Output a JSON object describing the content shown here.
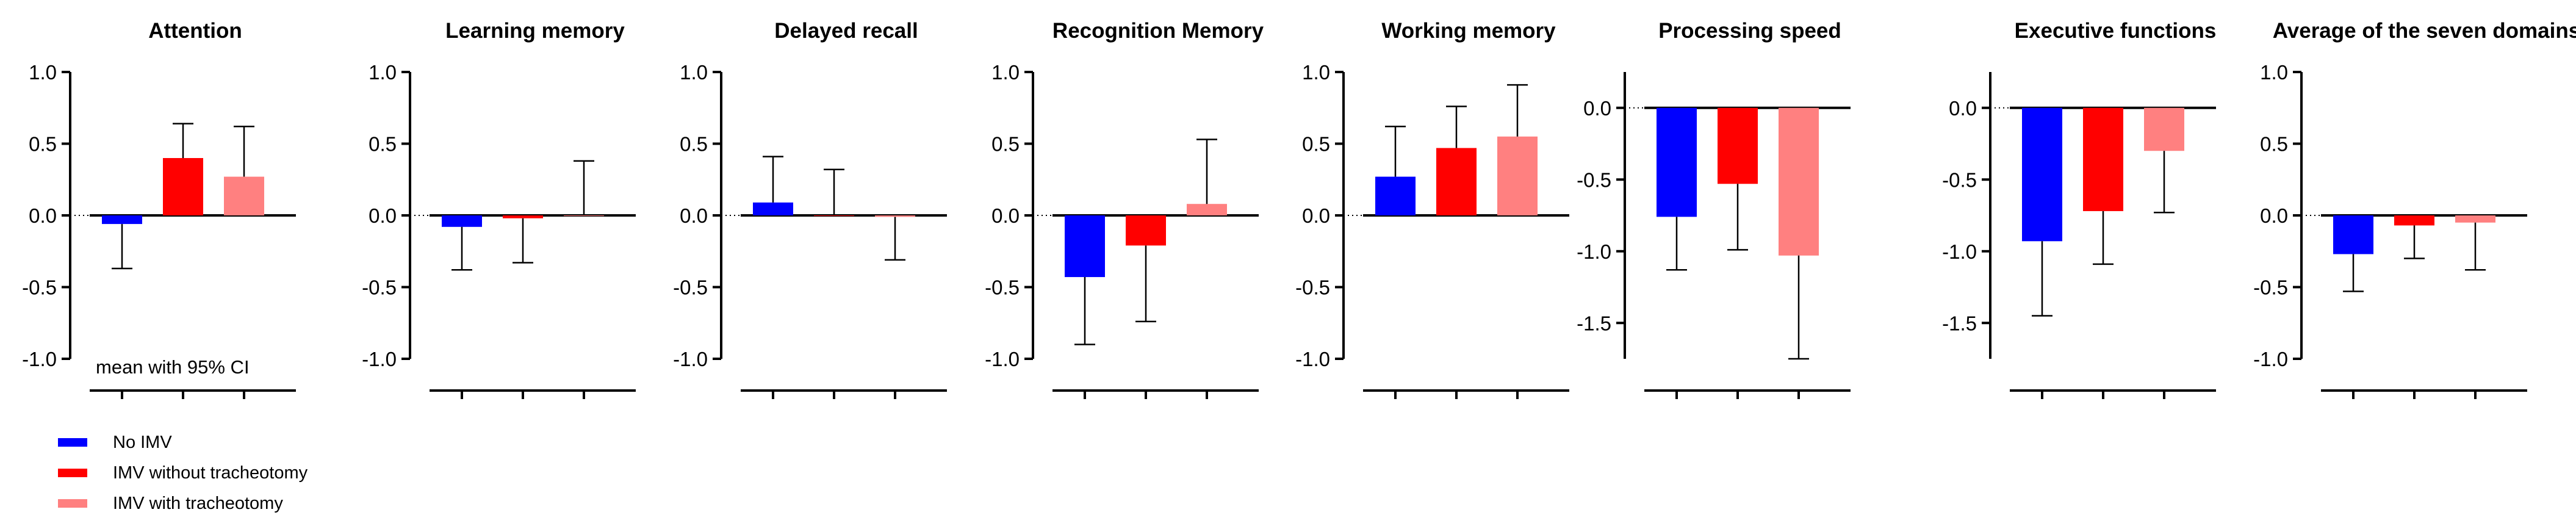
{
  "chart_data": [
    {
      "type": "bar",
      "title": "Attention",
      "ytick_labels": [
        "1.0",
        "0.5",
        "0.0",
        "-0.5",
        "-1.0"
      ],
      "ylim": [
        -1.0,
        1.0
      ],
      "annotation": "mean with 95% CI",
      "series": [
        {
          "name": "No IMV",
          "value": -0.06,
          "ci_low": -0.37,
          "ci_high": 0.0
        },
        {
          "name": "IMV without tracheotomy",
          "value": 0.4,
          "ci_low": 0.0,
          "ci_high": 0.64
        },
        {
          "name": "IMV with tracheotomy",
          "value": 0.27,
          "ci_low": 0.0,
          "ci_high": 0.62
        }
      ]
    },
    {
      "type": "bar",
      "title": "Learning memory",
      "ytick_labels": [
        "1.0",
        "0.5",
        "0.0",
        "-0.5",
        "-1.0"
      ],
      "ylim": [
        -1.0,
        1.0
      ],
      "series": [
        {
          "name": "No IMV",
          "value": -0.08,
          "ci_low": -0.38,
          "ci_high": 0.0
        },
        {
          "name": "IMV without tracheotomy",
          "value": -0.02,
          "ci_low": -0.33,
          "ci_high": 0.0
        },
        {
          "name": "IMV with tracheotomy",
          "value": 0.0,
          "ci_low": 0.0,
          "ci_high": 0.38
        }
      ]
    },
    {
      "type": "bar",
      "title": "Delayed recall",
      "ytick_labels": [
        "1.0",
        "0.5",
        "0.0",
        "-0.5",
        "-1.0"
      ],
      "ylim": [
        -1.0,
        1.0
      ],
      "series": [
        {
          "name": "No IMV",
          "value": 0.09,
          "ci_low": 0.0,
          "ci_high": 0.41
        },
        {
          "name": "IMV without tracheotomy",
          "value": 0.0,
          "ci_low": 0.0,
          "ci_high": 0.32
        },
        {
          "name": "IMV with tracheotomy",
          "value": -0.01,
          "ci_low": -0.31,
          "ci_high": 0.0
        }
      ]
    },
    {
      "type": "bar",
      "title": "Recognition Memory",
      "ytick_labels": [
        "1.0",
        "0.5",
        "0.0",
        "-0.5",
        "-1.0"
      ],
      "ylim": [
        -1.0,
        1.0
      ],
      "series": [
        {
          "name": "No IMV",
          "value": -0.43,
          "ci_low": -0.9,
          "ci_high": 0.0
        },
        {
          "name": "IMV without tracheotomy",
          "value": -0.21,
          "ci_low": -0.74,
          "ci_high": 0.0
        },
        {
          "name": "IMV with tracheotomy",
          "value": 0.08,
          "ci_low": 0.0,
          "ci_high": 0.53
        }
      ]
    },
    {
      "type": "bar",
      "title": "Working memory",
      "ytick_labels": [
        "1.0",
        "0.5",
        "0.0",
        "-0.5",
        "-1.0"
      ],
      "ylim": [
        -1.0,
        1.0
      ],
      "series": [
        {
          "name": "No IMV",
          "value": 0.27,
          "ci_low": 0.0,
          "ci_high": 0.62
        },
        {
          "name": "IMV without tracheotomy",
          "value": 0.47,
          "ci_low": 0.0,
          "ci_high": 0.76
        },
        {
          "name": "IMV with tracheotomy",
          "value": 0.55,
          "ci_low": 0.0,
          "ci_high": 0.91
        }
      ]
    },
    {
      "type": "bar",
      "title": "Processing speed",
      "ytick_labels": [
        "0.0",
        "-0.5",
        "-1.0",
        "-1.5"
      ],
      "ylim": [
        -1.75,
        0.25
      ],
      "series": [
        {
          "name": "No IMV",
          "value": -0.76,
          "ci_low": -1.13,
          "ci_high": 0.0
        },
        {
          "name": "IMV without tracheotomy",
          "value": -0.53,
          "ci_low": -0.99,
          "ci_high": 0.0
        },
        {
          "name": "IMV with tracheotomy",
          "value": -1.03,
          "ci_low": -1.75,
          "ci_high": 0.0
        }
      ]
    },
    {
      "type": "bar",
      "title": "Executive functions",
      "ytick_labels": [
        "0.0",
        "-0.5",
        "-1.0",
        "-1.5"
      ],
      "ylim": [
        -1.75,
        0.25
      ],
      "series": [
        {
          "name": "No IMV",
          "value": -0.93,
          "ci_low": -1.45,
          "ci_high": 0.0
        },
        {
          "name": "IMV without tracheotomy",
          "value": -0.72,
          "ci_low": -1.09,
          "ci_high": 0.0
        },
        {
          "name": "IMV with tracheotomy",
          "value": -0.3,
          "ci_low": -0.73,
          "ci_high": 0.0
        }
      ]
    },
    {
      "type": "bar",
      "title": "Average of the seven domains",
      "ytick_labels": [
        "1.0",
        "0.5",
        "0.0",
        "-0.5",
        "-1.0"
      ],
      "ylim": [
        -1.0,
        1.0
      ],
      "series": [
        {
          "name": "No IMV",
          "value": -0.27,
          "ci_low": -0.53,
          "ci_high": 0.0
        },
        {
          "name": "IMV without tracheotomy",
          "value": -0.07,
          "ci_low": -0.3,
          "ci_high": 0.0
        },
        {
          "name": "IMV with tracheotomy",
          "value": -0.05,
          "ci_low": -0.38,
          "ci_high": 0.0
        }
      ]
    }
  ],
  "legend": {
    "position": "bottom-left",
    "items": [
      {
        "label": "No IMV",
        "color": "#0000ff"
      },
      {
        "label": "IMV without tracheotomy",
        "color": "#ff0000"
      },
      {
        "label": "IMV with tracheotomy",
        "color": "#ff8080"
      }
    ]
  },
  "colors": {
    "No IMV": "#0000ff",
    "IMV without tracheotomy": "#ff0000",
    "IMV with tracheotomy": "#ff8080"
  }
}
